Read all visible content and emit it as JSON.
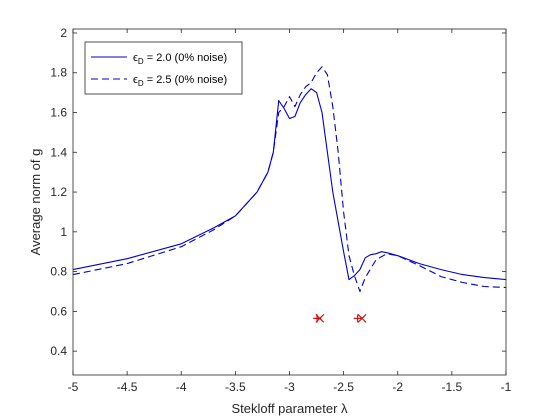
{
  "chart_data": {
    "type": "line",
    "xlabel": "Stekloff parameter λ",
    "ylabel": "Average norm of g",
    "xlim": [
      -5,
      -1
    ],
    "ylim": [
      0.28,
      2.02
    ],
    "xticks": [
      -5,
      -4.5,
      -4,
      -3.5,
      -3,
      -2.5,
      -2,
      -1.5,
      -1
    ],
    "xtick_labels": [
      "-5",
      "-4.5",
      "-4",
      "-3.5",
      "-3",
      "-2.5",
      "-2",
      "-1.5",
      "-1"
    ],
    "yticks": [
      0.4,
      0.6,
      0.8,
      1.0,
      1.2,
      1.4,
      1.6,
      1.8,
      2.0
    ],
    "ytick_labels": [
      "0.4",
      "0.6",
      "0.8",
      "1",
      "1.2",
      "1.4",
      "1.6",
      "1.8",
      "2"
    ],
    "legend_position": "top-left",
    "grid": false,
    "series": [
      {
        "name": "εD = 2.0 (0% noise)",
        "legend_label": {
          "eps": "ϵ",
          "sub": "D",
          "rest": " = 2.0 (0% noise)"
        },
        "color": "#0000cc",
        "dash": "solid",
        "points": [
          [
            -5.0,
            0.81
          ],
          [
            -4.5,
            0.865
          ],
          [
            -4.0,
            0.94
          ],
          [
            -3.7,
            1.02
          ],
          [
            -3.5,
            1.08
          ],
          [
            -3.3,
            1.2
          ],
          [
            -3.2,
            1.3
          ],
          [
            -3.15,
            1.4
          ],
          [
            -3.1,
            1.66
          ],
          [
            -3.05,
            1.62
          ],
          [
            -3.0,
            1.57
          ],
          [
            -2.95,
            1.58
          ],
          [
            -2.9,
            1.65
          ],
          [
            -2.85,
            1.69
          ],
          [
            -2.8,
            1.72
          ],
          [
            -2.75,
            1.7
          ],
          [
            -2.7,
            1.6
          ],
          [
            -2.65,
            1.4
          ],
          [
            -2.6,
            1.2
          ],
          [
            -2.55,
            1.05
          ],
          [
            -2.5,
            0.9
          ],
          [
            -2.45,
            0.76
          ],
          [
            -2.4,
            0.78
          ],
          [
            -2.35,
            0.81
          ],
          [
            -2.3,
            0.87
          ],
          [
            -2.25,
            0.885
          ],
          [
            -2.2,
            0.89
          ],
          [
            -2.15,
            0.9
          ],
          [
            -2.1,
            0.895
          ],
          [
            -2.0,
            0.88
          ],
          [
            -1.8,
            0.84
          ],
          [
            -1.6,
            0.81
          ],
          [
            -1.4,
            0.785
          ],
          [
            -1.2,
            0.77
          ],
          [
            -1.0,
            0.76
          ]
        ]
      },
      {
        "name": "εD = 2.5 (0% noise)",
        "legend_label": {
          "eps": "ϵ",
          "sub": "D",
          "rest": " = 2.5 (0% noise)"
        },
        "color": "#0000cc",
        "dash": "dashed",
        "points": [
          [
            -5.0,
            0.785
          ],
          [
            -4.5,
            0.84
          ],
          [
            -4.0,
            0.925
          ],
          [
            -3.7,
            1.01
          ],
          [
            -3.5,
            1.08
          ],
          [
            -3.3,
            1.2
          ],
          [
            -3.2,
            1.3
          ],
          [
            -3.15,
            1.4
          ],
          [
            -3.1,
            1.6
          ],
          [
            -3.05,
            1.63
          ],
          [
            -3.0,
            1.68
          ],
          [
            -2.95,
            1.63
          ],
          [
            -2.9,
            1.69
          ],
          [
            -2.85,
            1.73
          ],
          [
            -2.8,
            1.75
          ],
          [
            -2.75,
            1.8
          ],
          [
            -2.7,
            1.83
          ],
          [
            -2.65,
            1.79
          ],
          [
            -2.6,
            1.63
          ],
          [
            -2.55,
            1.4
          ],
          [
            -2.5,
            1.1
          ],
          [
            -2.45,
            0.88
          ],
          [
            -2.4,
            0.78
          ],
          [
            -2.35,
            0.7
          ],
          [
            -2.3,
            0.77
          ],
          [
            -2.2,
            0.86
          ],
          [
            -2.1,
            0.89
          ],
          [
            -2.0,
            0.88
          ],
          [
            -1.8,
            0.83
          ],
          [
            -1.6,
            0.775
          ],
          [
            -1.4,
            0.745
          ],
          [
            -1.2,
            0.725
          ],
          [
            -1.0,
            0.72
          ]
        ]
      }
    ],
    "markers": [
      {
        "shape": "plus",
        "color": "#cc0000",
        "x": -2.745,
        "y": 0.565
      },
      {
        "shape": "x",
        "color": "#cc0000",
        "x": -2.72,
        "y": 0.565
      },
      {
        "shape": "plus",
        "color": "#cc0000",
        "x": -2.37,
        "y": 0.565
      },
      {
        "shape": "x",
        "color": "#cc0000",
        "x": -2.33,
        "y": 0.565
      }
    ]
  }
}
